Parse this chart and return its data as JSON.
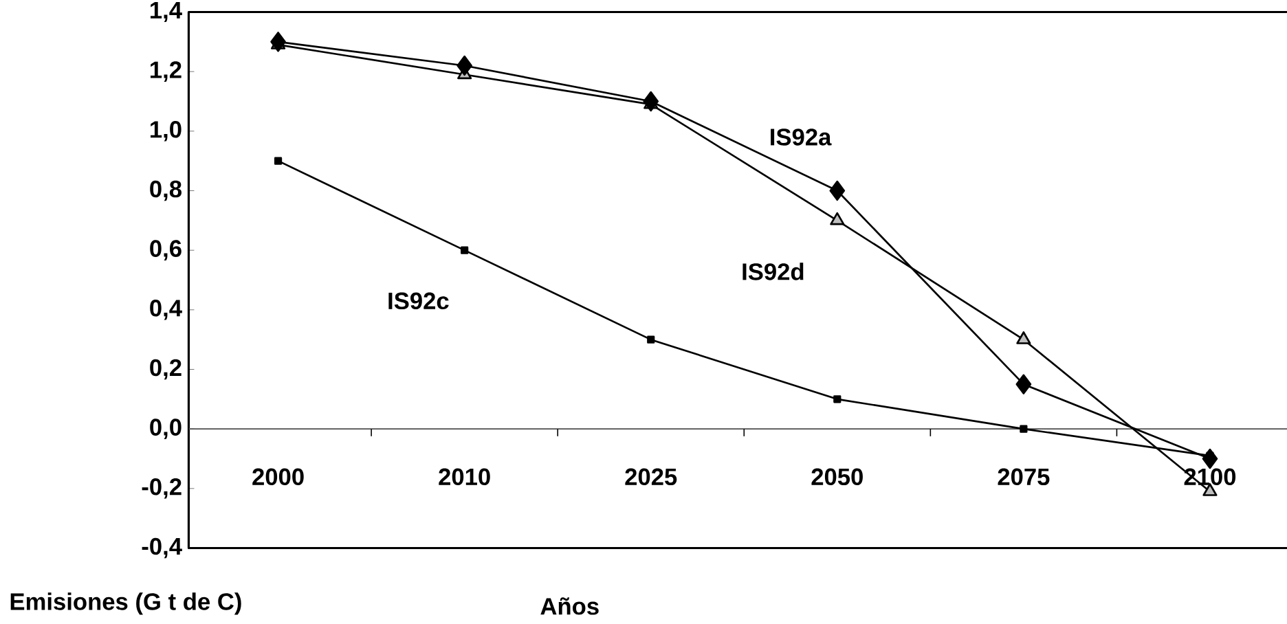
{
  "chart_data": {
    "type": "line",
    "xlabel": "Años",
    "ylabel": "Emisiones (G t de C)",
    "categories": [
      "2000",
      "2010",
      "2025",
      "2050",
      "2075",
      "2100"
    ],
    "series": [
      {
        "name": "IS92a",
        "color": "#000000",
        "marker": "diamond",
        "values": [
          1.3,
          1.22,
          1.1,
          0.8,
          0.15,
          -0.1
        ]
      },
      {
        "name": "IS92d",
        "color": "#000000",
        "marker": "triangle",
        "values": [
          1.29,
          1.19,
          1.09,
          0.7,
          0.3,
          -0.21
        ]
      },
      {
        "name": "IS92c",
        "color": "#000000",
        "marker": "square",
        "values": [
          0.9,
          0.6,
          0.3,
          0.1,
          0.0,
          -0.09
        ]
      }
    ],
    "ylim": [
      -0.4,
      1.4
    ],
    "yticks": [
      {
        "value": -0.4,
        "label": "-0,4"
      },
      {
        "value": -0.2,
        "label": "-0,2"
      },
      {
        "value": 0.0,
        "label": "0,0"
      },
      {
        "value": 0.2,
        "label": "0,2"
      },
      {
        "value": 0.4,
        "label": "0,4"
      },
      {
        "value": 0.6,
        "label": "0,6"
      },
      {
        "value": 0.8,
        "label": "0,8"
      },
      {
        "value": 1.0,
        "label": "1,0"
      },
      {
        "value": 1.2,
        "label": "1,2"
      },
      {
        "value": 1.4,
        "label": "1,4"
      }
    ],
    "grid": false,
    "legend": false,
    "line_style": "solid"
  }
}
